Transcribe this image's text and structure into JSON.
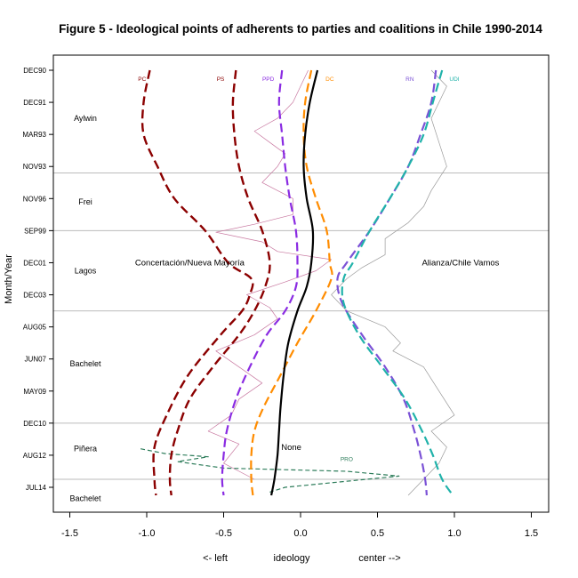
{
  "chart_data": {
    "type": "line",
    "title": "Figure 5 -  Ideological points of adherents to parties and coalitions in Chile 1990-2014",
    "ylabel": "Month/Year",
    "xlabel_parts": [
      "<- left",
      "ideology",
      "center -->"
    ],
    "xlim": [
      -1.5,
      1.5
    ],
    "x_ticks": [
      "-1.5",
      "-1.0",
      "-0.5",
      "0.0",
      "0.5",
      "1.0",
      "1.5"
    ],
    "y_ticks": [
      "DEC90",
      "DEC91",
      "MAR93",
      "NOV93",
      "NOV96",
      "SEP99",
      "DEC01",
      "DEC03",
      "AUG05",
      "JUN07",
      "MAY09",
      "DEC10",
      "AUG12",
      "JUL14"
    ],
    "y_tick_index": [
      0,
      2,
      4,
      6,
      8,
      10,
      12,
      14,
      16,
      18,
      20,
      22,
      24,
      26
    ],
    "ylim_index": [
      0,
      26
    ],
    "period_dividers_index": [
      6.4,
      10,
      15,
      22,
      25.5
    ],
    "periods": [
      {
        "name": "Aylwin",
        "at": 3
      },
      {
        "name": "Frei",
        "at": 8.2
      },
      {
        "name": "Lagos",
        "at": 12.5
      },
      {
        "name": "Bachelet",
        "at": 18.3
      },
      {
        "name": "Piñera",
        "at": 23.6
      },
      {
        "name": "Bachelet",
        "at": 26.7
      }
    ],
    "coalition_labels": [
      {
        "text": "Concertación/Nueva Mayoría",
        "x": -0.72,
        "at": 12
      },
      {
        "text": "Alianza/Chile Vamos",
        "x": 1.04,
        "at": 12
      },
      {
        "text": "None",
        "x": -0.06,
        "at": 23.5
      },
      {
        "text": "PRO",
        "x": 0.3,
        "at": 24.2
      }
    ],
    "series": [
      {
        "name": "PC",
        "color": "#8b0000",
        "dash": true,
        "width": 2.4,
        "label_x": -1.03,
        "x": [
          -0.98,
          -1.02,
          -1.02,
          -0.93,
          -0.82,
          -0.62,
          -0.47,
          -0.32,
          -0.33,
          -0.38,
          -0.52,
          -0.73,
          -0.87,
          -0.95,
          -0.95,
          -0.94
        ],
        "y": [
          0,
          2,
          4,
          6,
          8,
          10,
          12,
          13,
          14,
          15,
          16.5,
          19,
          21.5,
          23.5,
          25.5,
          26.5
        ]
      },
      {
        "name": "PS",
        "color": "#8b0000",
        "dash": true,
        "width": 2.4,
        "label_x": -0.52,
        "x": [
          -0.42,
          -0.44,
          -0.43,
          -0.4,
          -0.34,
          -0.25,
          -0.2,
          -0.23,
          -0.3,
          -0.4,
          -0.57,
          -0.72,
          -0.8,
          -0.84,
          -0.85,
          -0.84
        ],
        "y": [
          0,
          2,
          4,
          6,
          8,
          10,
          12,
          13.5,
          15,
          16.5,
          18.5,
          20.5,
          22.5,
          24,
          25.5,
          26.5
        ]
      },
      {
        "name": "PPD",
        "color": "#8a2be2",
        "dash": true,
        "width": 2.2,
        "label_x": -0.21,
        "x": [
          -0.12,
          -0.14,
          -0.12,
          -0.1,
          -0.07,
          -0.03,
          -0.02,
          -0.03,
          -0.1,
          -0.22,
          -0.33,
          -0.42,
          -0.48,
          -0.5,
          -0.51,
          -0.5
        ],
        "y": [
          0,
          2,
          4,
          6,
          8,
          10,
          12,
          13.5,
          15,
          16.5,
          18.5,
          20.5,
          22.5,
          24,
          25.5,
          26.5
        ]
      },
      {
        "name": "DC",
        "color": "#ff8c00",
        "dash": true,
        "width": 2.2,
        "label_x": 0.19,
        "x": [
          0.07,
          0.03,
          0.02,
          0.04,
          0.1,
          0.17,
          0.19,
          0.2,
          0.1,
          -0.02,
          -0.13,
          -0.24,
          -0.3,
          -0.32,
          -0.32,
          -0.31
        ],
        "y": [
          0,
          2,
          4,
          6,
          8,
          10,
          12,
          13,
          15,
          17,
          19,
          21,
          22.5,
          24,
          25.5,
          26.5
        ]
      },
      {
        "name": "RN",
        "color": "#7b52d6",
        "dash": true,
        "width": 2.2,
        "label_x": 0.71,
        "x": [
          0.88,
          0.85,
          0.78,
          0.7,
          0.58,
          0.45,
          0.3,
          0.24,
          0.27,
          0.4,
          0.55,
          0.67,
          0.74,
          0.78,
          0.81,
          0.82
        ],
        "y": [
          0,
          2,
          4,
          6,
          8,
          10,
          12,
          13,
          14.5,
          16.5,
          18.5,
          20.5,
          22.5,
          24,
          25.5,
          26.5
        ]
      },
      {
        "name": "UDI",
        "color": "#20b2aa",
        "dash": true,
        "width": 2.2,
        "label_x": 1.0,
        "x": [
          0.92,
          0.86,
          0.8,
          0.7,
          0.58,
          0.45,
          0.34,
          0.28,
          0.28,
          0.38,
          0.53,
          0.68,
          0.79,
          0.86,
          0.92,
          0.99
        ],
        "y": [
          0,
          2,
          4,
          6,
          8,
          10,
          12,
          13,
          14.5,
          16.5,
          18.5,
          20.5,
          22.5,
          24,
          25.5,
          26.5
        ]
      },
      {
        "name": "None",
        "color": "#000000",
        "dash": false,
        "width": 2.2,
        "x": [
          0.11,
          0.06,
          0.03,
          0.02,
          0.04,
          0.08,
          0.07,
          0.04,
          -0.02,
          -0.08,
          -0.11,
          -0.13,
          -0.14,
          -0.15,
          -0.17,
          -0.19
        ],
        "y": [
          0,
          2,
          4,
          6,
          8,
          10,
          12,
          13.5,
          15,
          17,
          19,
          21,
          22.5,
          24,
          25.5,
          26.5
        ]
      },
      {
        "name": "PRO",
        "color": "#2e7d5b",
        "dash": true,
        "width": 1.2,
        "x": [
          -1.04,
          -0.88,
          -0.6,
          -0.8,
          -0.5,
          0.3,
          0.64,
          -0.1,
          -0.2
        ],
        "y": [
          23.6,
          23.9,
          24.1,
          24.4,
          24.8,
          25.0,
          25.3,
          26.0,
          26.3
        ]
      },
      {
        "name": "Concertación/Nueva Mayoría (observed)",
        "color": "#c878a0",
        "dash": false,
        "width": 0.7,
        "x": [
          0.05,
          0.0,
          -0.05,
          -0.15,
          -0.3,
          -0.2,
          -0.1,
          -0.15,
          -0.25,
          -0.05,
          -0.05,
          -0.3,
          -0.55,
          -0.25,
          -0.15,
          0.2,
          0.1,
          -0.1,
          -0.35,
          -0.2,
          -0.15,
          -0.3,
          -0.55,
          -0.4,
          -0.25,
          -0.4,
          -0.45,
          -0.6,
          -0.4,
          -0.5,
          -0.3
        ],
        "y": [
          0,
          1,
          2,
          3,
          3.8,
          4.5,
          5.2,
          6,
          7,
          8,
          9,
          9.6,
          10.1,
          10.7,
          11.3,
          11.8,
          12.5,
          13.2,
          14,
          14.8,
          15.5,
          16.5,
          17.5,
          18.5,
          19.5,
          20.5,
          21.5,
          22.5,
          23.3,
          24.5,
          25.5
        ]
      },
      {
        "name": "Alianza/Chile Vamos (observed)",
        "color": "#999999",
        "dash": false,
        "width": 0.7,
        "x": [
          0.85,
          0.95,
          0.9,
          0.85,
          0.9,
          0.95,
          0.85,
          0.8,
          0.7,
          0.55,
          0.55,
          0.4,
          0.3,
          0.2,
          0.3,
          0.55,
          0.65,
          0.6,
          0.8,
          0.9,
          1.0,
          0.85,
          0.95,
          0.9,
          0.8,
          0.7
        ],
        "y": [
          0,
          1,
          2,
          3,
          4.5,
          6,
          7.5,
          8.5,
          9.5,
          10.5,
          11.5,
          12.3,
          13,
          14,
          15,
          16,
          17,
          17.5,
          18.5,
          20,
          21.5,
          22.5,
          23.5,
          24.5,
          25.5,
          26.5
        ]
      }
    ]
  }
}
